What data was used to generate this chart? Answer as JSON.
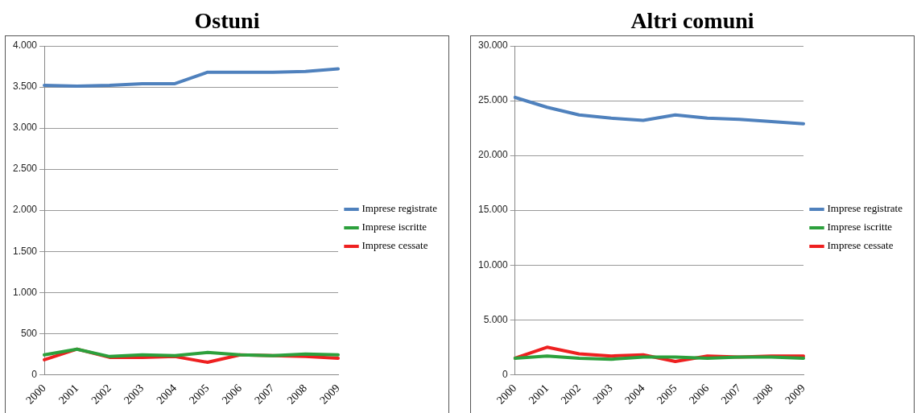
{
  "chart_data": [
    {
      "type": "line",
      "title": "Ostuni",
      "categories": [
        "2000",
        "2001",
        "2002",
        "2003",
        "2004",
        "2005",
        "2006",
        "2007",
        "2008",
        "2009"
      ],
      "series": [
        {
          "name": "Imprese registrate",
          "color": "#4f81bd",
          "values": [
            3520,
            3510,
            3520,
            3540,
            3540,
            3680,
            3680,
            3680,
            3690,
            3720
          ]
        },
        {
          "name": "Imprese iscritte",
          "color": "#2ca03c",
          "values": [
            240,
            310,
            220,
            240,
            230,
            270,
            240,
            230,
            250,
            240
          ]
        },
        {
          "name": "Imprese cessate",
          "color": "#ee2020",
          "values": [
            180,
            310,
            210,
            210,
            220,
            150,
            240,
            230,
            220,
            200
          ]
        }
      ],
      "ylim": [
        0,
        4000
      ],
      "yticks": [
        0,
        {
          "value": 500,
          "label": "500"
        },
        {
          "value": 1000,
          "label": "1.000"
        },
        {
          "value": 1500,
          "label": "1.500"
        },
        {
          "value": 2000,
          "label": "2.000"
        },
        {
          "value": 2500,
          "label": "2.500"
        },
        {
          "value": 3000,
          "label": "3.000"
        },
        {
          "value": 3500,
          "label": "3.500"
        },
        {
          "value": 4000,
          "label": "4.000"
        }
      ],
      "grid": "y",
      "legend": "right",
      "marker": "none",
      "line_style": "solid"
    },
    {
      "type": "line",
      "title": "Altri comuni",
      "categories": [
        "2000",
        "2001",
        "2002",
        "2003",
        "2004",
        "2005",
        "2006",
        "2007",
        "2008",
        "2009"
      ],
      "series": [
        {
          "name": "Imprese registrate",
          "color": "#4f81bd",
          "values": [
            25300,
            24400,
            23700,
            23400,
            23200,
            23700,
            23400,
            23300,
            23100,
            22900
          ]
        },
        {
          "name": "Imprese iscritte",
          "color": "#2ca03c",
          "values": [
            1500,
            1700,
            1500,
            1400,
            1600,
            1600,
            1500,
            1600,
            1600,
            1500
          ]
        },
        {
          "name": "Imprese cessate",
          "color": "#ee2020",
          "values": [
            1500,
            2500,
            1900,
            1700,
            1800,
            1200,
            1700,
            1600,
            1700,
            1700
          ]
        }
      ],
      "ylim": [
        0,
        30000
      ],
      "yticks": [
        0,
        {
          "value": 5000,
          "label": "5.000"
        },
        {
          "value": 10000,
          "label": "10.000"
        },
        {
          "value": 15000,
          "label": "15.000"
        },
        {
          "value": 20000,
          "label": "20.000"
        },
        {
          "value": 25000,
          "label": "25.000"
        },
        {
          "value": 30000,
          "label": "30.000"
        }
      ],
      "grid": "y",
      "legend": "right",
      "marker": "none",
      "line_style": "solid"
    }
  ]
}
